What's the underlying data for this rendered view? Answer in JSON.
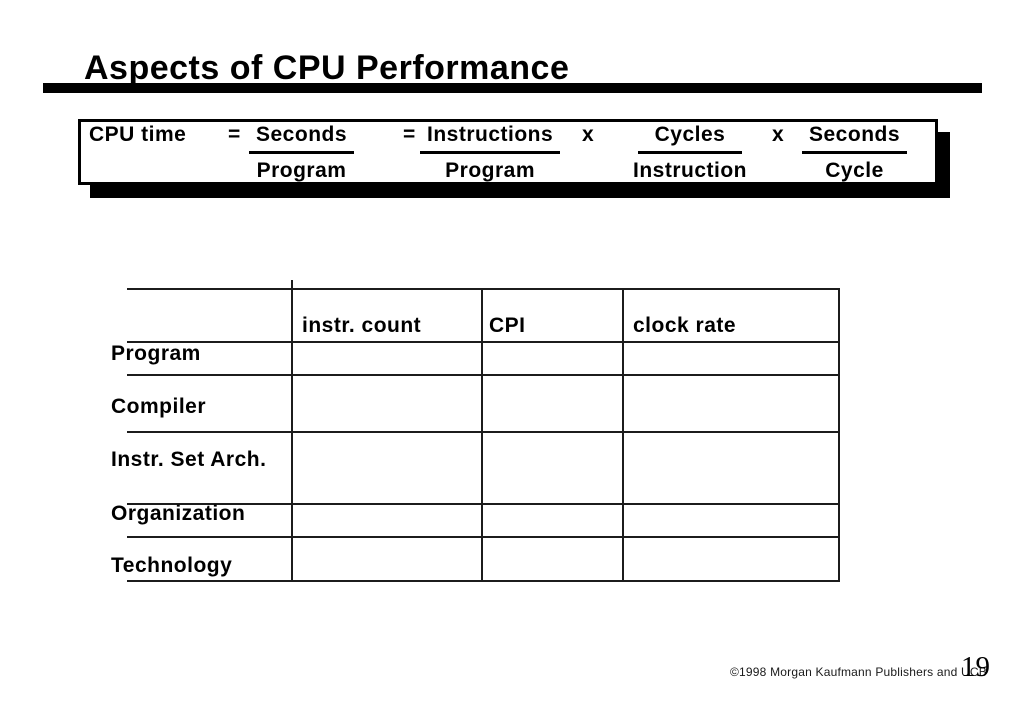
{
  "slide": {
    "title": "Aspects of CPU Performance",
    "equation": {
      "lhs": "CPU time",
      "equals_1": "=",
      "equals_2": "=",
      "times_1": "x",
      "times_2": "x",
      "fractions": [
        {
          "num": "Seconds",
          "den": "Program"
        },
        {
          "num": "Instructions",
          "den": "Program"
        },
        {
          "num": "Cycles",
          "den": "Instruction"
        },
        {
          "num": "Seconds",
          "den": "Cycle"
        }
      ]
    },
    "table": {
      "headers": [
        "instr. count",
        "CPI",
        "clock rate"
      ],
      "row_labels": [
        "Program",
        "Compiler",
        "Instr. Set Arch.",
        "Organization",
        "Technology"
      ]
    },
    "footer": {
      "copyright": "©1998 Morgan Kaufmann Publishers and UCB",
      "page_number": "19"
    },
    "colors": {
      "background": "#ffffff",
      "text": "#000000",
      "line": "#1c1c1c"
    }
  }
}
